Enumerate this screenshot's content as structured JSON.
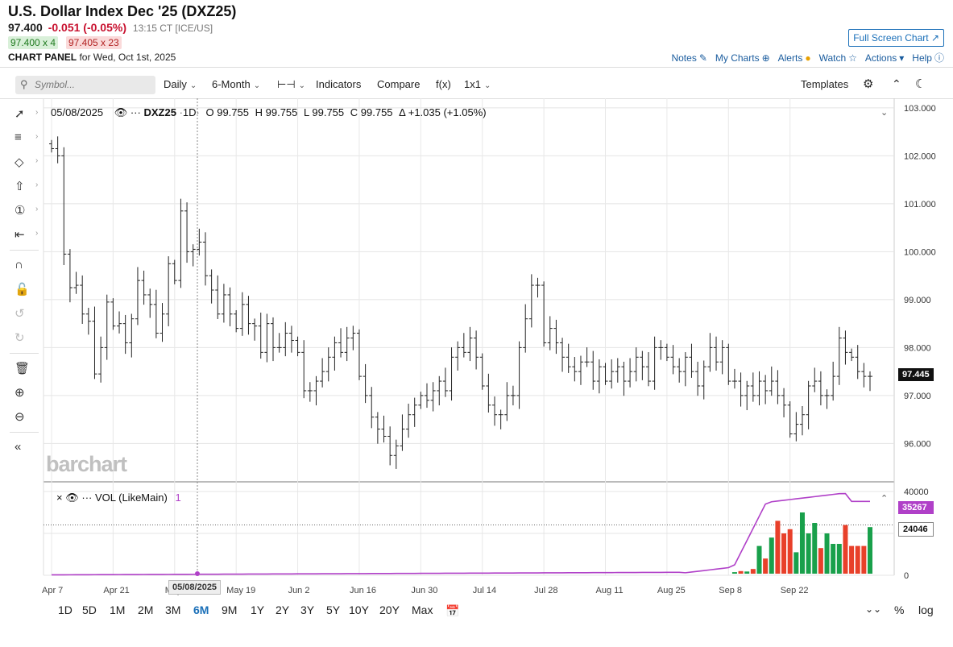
{
  "header": {
    "title": "U.S. Dollar Index Dec '25 (DXZ25)",
    "last": "97.400",
    "change": "-0.051 (-0.05%)",
    "time": "13:15 CT [ICE/US]",
    "bid": "97.400 x 4",
    "ask": "97.405 x 23",
    "panel_label": "CHART PANEL",
    "panel_date": "for Wed, Oct 1st, 2025",
    "fullscreen": "Full Screen Chart",
    "nav": [
      "Notes",
      "My Charts",
      "Alerts",
      "Watch",
      "Actions",
      "Help"
    ]
  },
  "toolbar": {
    "symbol_placeholder": "Symbol...",
    "interval": "Daily",
    "period": "6-Month",
    "indicators": "Indicators",
    "compare": "Compare",
    "fx": "f(x)",
    "layout": "1x1",
    "templates": "Templates"
  },
  "legend": {
    "date": "05/08/2025",
    "symbol": "DXZ25",
    "interval": "1D",
    "open": "O 99.755",
    "high": "H 99.755",
    "low": "L 99.755",
    "close": "C 99.755",
    "delta": "Δ +1.035 (+1.05%)"
  },
  "volume_legend": {
    "label": "VOL (LikeMain)",
    "count": "1"
  },
  "price_boxes": {
    "last": "97.445",
    "vol_ma": "35267",
    "vol": "24046"
  },
  "crosshair_date": "05/08/2025",
  "watermark": "barchart",
  "ranges": [
    "1D",
    "5D",
    "1M",
    "2M",
    "3M",
    "6M",
    "9M",
    "1Y",
    "2Y",
    "3Y",
    "5Y",
    "10Y",
    "20Y",
    "Max"
  ],
  "active_range": "6M",
  "right_buttons": [
    "%",
    "log"
  ],
  "colors": {
    "up_volume": "#19a04b",
    "down_volume": "#e8402a",
    "vol_ma": "#b040c8",
    "accent": "#1a6fb8"
  },
  "chart_data": {
    "type": "ohlc",
    "price_axis": {
      "ticks": [
        "103.000",
        "102.000",
        "101.000",
        "100.000",
        "99.000",
        "98.000",
        "97.000",
        "96.000"
      ],
      "range": [
        95.2,
        103.2
      ]
    },
    "volume_axis": {
      "ticks": [
        "40000",
        "20000",
        "0"
      ],
      "range": [
        0,
        40000
      ]
    },
    "x_labels": [
      "Apr 7",
      "Apr 21",
      "May 5",
      "May 19",
      "Jun 2",
      "Jun 16",
      "Jun 30",
      "Jul 14",
      "Jul 28",
      "Aug 11",
      "Aug 25",
      "Sep 8",
      "Sep 22"
    ],
    "closes": [
      102.15,
      102.0,
      99.95,
      99.25,
      99.3,
      98.7,
      98.55,
      97.45,
      98.0,
      98.95,
      98.45,
      98.5,
      98.1,
      98.6,
      99.4,
      99.1,
      98.9,
      98.3,
      98.7,
      99.75,
      99.4,
      100.85,
      100.0,
      100.05,
      100.2,
      99.5,
      99.2,
      98.7,
      99.1,
      98.7,
      98.4,
      98.9,
      98.5,
      98.45,
      97.9,
      98.5,
      98.0,
      98.0,
      98.3,
      98.15,
      97.9,
      97.1,
      97.1,
      97.3,
      97.5,
      97.8,
      98.1,
      97.9,
      98.2,
      98.3,
      97.4,
      97.0,
      96.55,
      96.3,
      96.15,
      95.75,
      95.95,
      96.3,
      96.6,
      96.8,
      97.0,
      96.9,
      97.1,
      97.3,
      97.1,
      97.8,
      98.0,
      97.9,
      98.2,
      97.8,
      97.2,
      96.8,
      96.6,
      96.6,
      97.0,
      97.0,
      98.0,
      98.6,
      99.3,
      99.3,
      98.1,
      98.4,
      98.1,
      97.8,
      97.6,
      97.5,
      97.7,
      97.7,
      97.3,
      97.6,
      97.3,
      97.5,
      97.6,
      97.3,
      97.5,
      97.8,
      97.6,
      97.3,
      98.0,
      98.0,
      97.8,
      97.6,
      97.5,
      97.8,
      97.5,
      97.2,
      97.6,
      98.0,
      97.7,
      98.0,
      97.3,
      97.3,
      97.0,
      97.2,
      97.0,
      97.3,
      97.1,
      97.3,
      97.0,
      96.8,
      96.2,
      96.4,
      96.6,
      97.2,
      97.3,
      97.0,
      97.0,
      97.4,
      98.2,
      97.9,
      97.8,
      97.5,
      97.4,
      97.4
    ]
  }
}
